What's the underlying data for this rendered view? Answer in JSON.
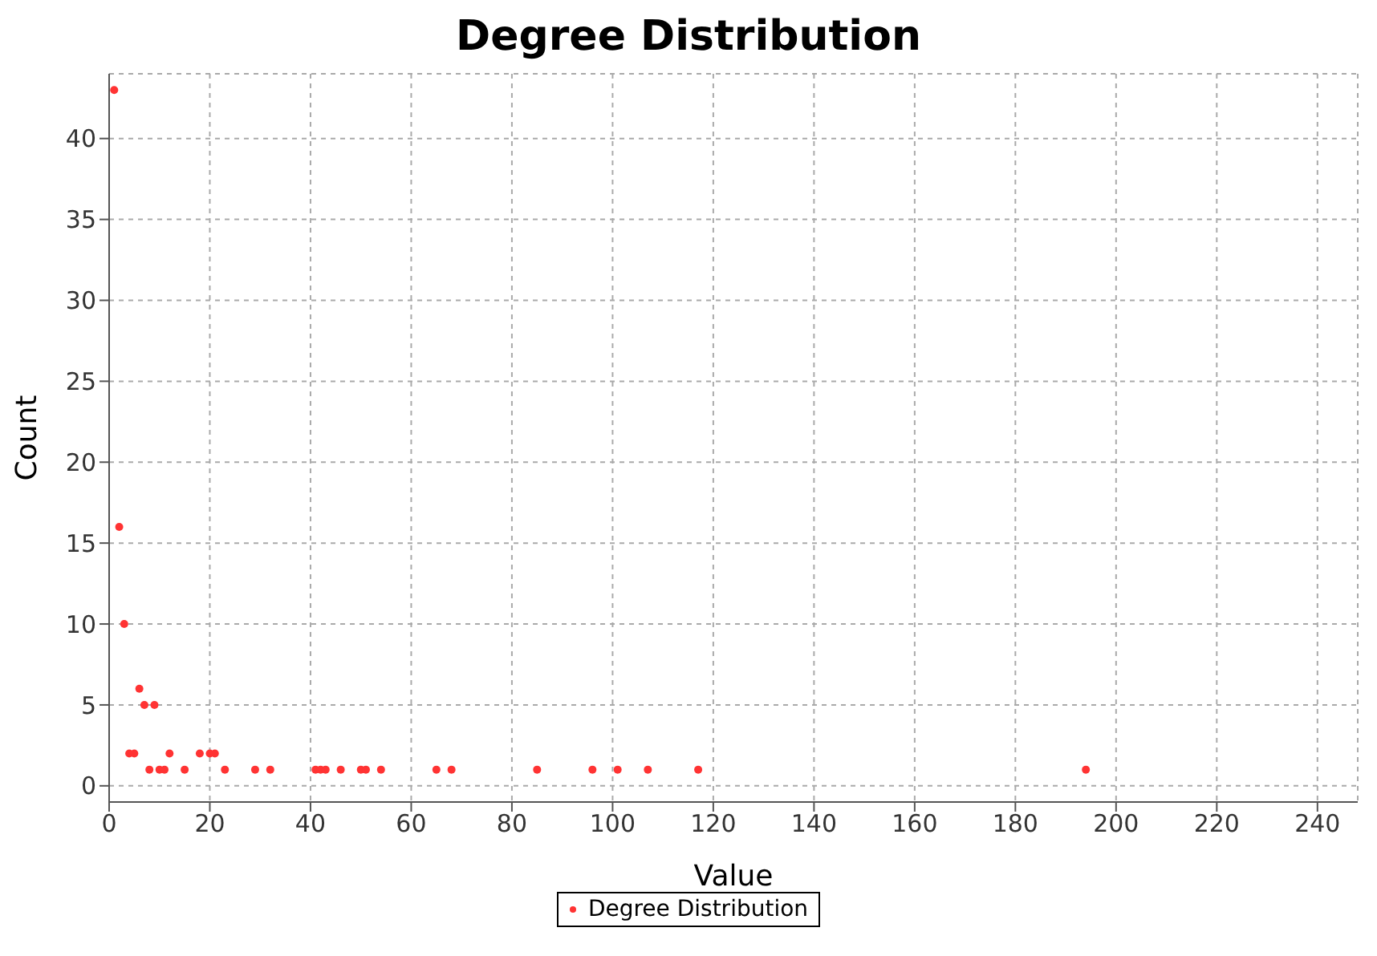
{
  "chart_data": {
    "type": "scatter",
    "title": "Degree Distribution",
    "xlabel": "Value",
    "ylabel": "Count",
    "x": [
      1,
      2,
      3,
      4,
      5,
      6,
      7,
      8,
      9,
      10,
      11,
      12,
      15,
      18,
      20,
      21,
      23,
      29,
      32,
      41,
      42,
      43,
      46,
      50,
      51,
      54,
      65,
      68,
      85,
      96,
      101,
      107,
      117,
      194
    ],
    "series": [
      {
        "name": "Degree Distribution",
        "color": "#ff3333",
        "values": [
          43,
          16,
          10,
          2,
          2,
          6,
          5,
          1,
          5,
          1,
          1,
          2,
          1,
          2,
          2,
          2,
          1,
          1,
          1,
          1,
          1,
          1,
          1,
          1,
          1,
          1,
          1,
          1,
          1,
          1,
          1,
          1,
          1,
          1
        ]
      }
    ],
    "xlim": [
      0,
      248
    ],
    "xticks": [
      0,
      20,
      40,
      60,
      80,
      100,
      120,
      140,
      160,
      180,
      200,
      220,
      240
    ],
    "ylim": [
      -1,
      44
    ],
    "yticks": [
      0,
      5,
      10,
      15,
      20,
      25,
      30,
      35,
      40
    ],
    "grid": true,
    "legend": "bottom",
    "marker": "circle"
  }
}
